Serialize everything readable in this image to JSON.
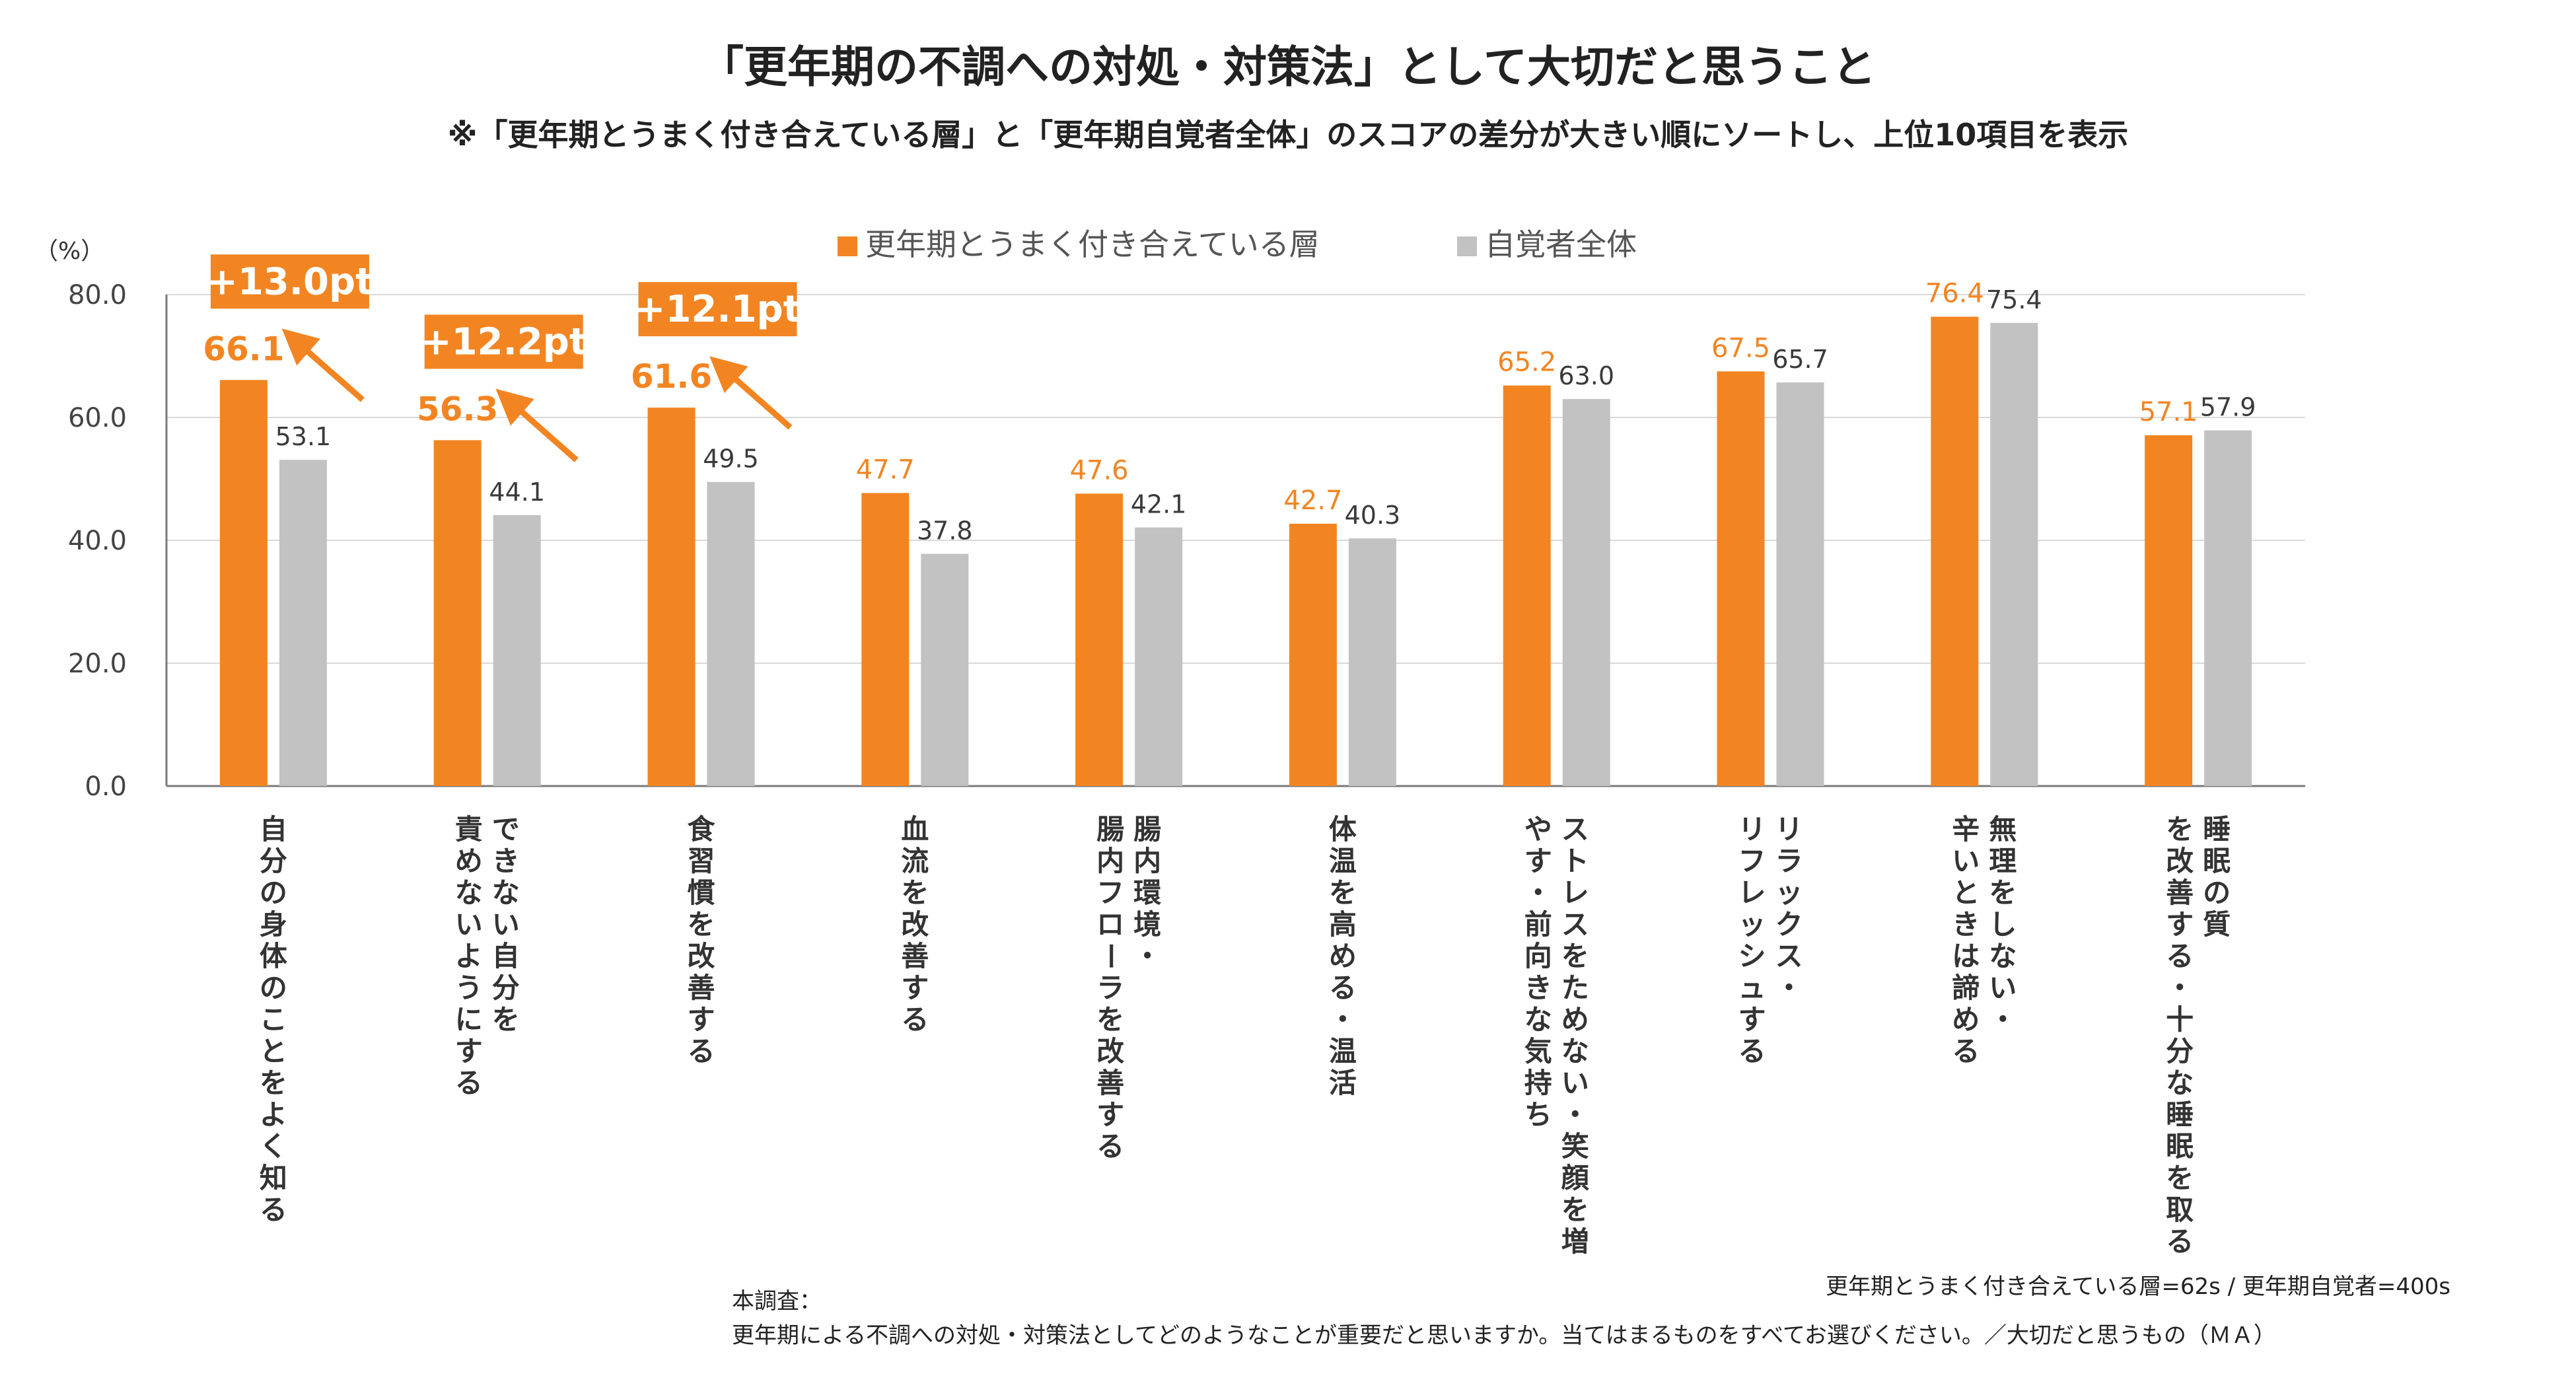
{
  "title": "「更年期の不調への対処・対策法」として大切だと思うこと",
  "subtitle": "※「更年期とうまく付き合えている層」と「更年期自覚者全体」のスコアの差分が大きい順にソートし、上位10項目を表示",
  "unit_label": "（%）",
  "colors": {
    "orange": "#f28522",
    "gray": "#c2c2c2",
    "orange_text": "#f28522",
    "gray_text": "#3a3a3a"
  },
  "chart_data": {
    "type": "bar",
    "ylim": [
      0,
      80
    ],
    "yticks": [
      "0.0",
      "20.0",
      "40.0",
      "60.0",
      "80.0"
    ],
    "grid": true,
    "legend_position": "top",
    "categories": [
      [
        "自分の身体のことをよく知る"
      ],
      [
        "できない自分を",
        "責めないようにする"
      ],
      [
        "食習慣を改善する"
      ],
      [
        "血流を改善する"
      ],
      [
        "腸内環境・",
        "腸内フローラを改善する"
      ],
      [
        "体温を高める・温活"
      ],
      [
        "ストレスをためない・笑顔を増",
        "やす・前向きな気持ち"
      ],
      [
        "リラックス・",
        "リフレッシュする"
      ],
      [
        "無理をしない・",
        "辛いときは諦める"
      ],
      [
        "睡眠の質",
        "を改善する・十分な睡眠を取る"
      ]
    ],
    "series": [
      {
        "name": "更年期とうまく付き合えている層",
        "values": [
          66.1,
          56.3,
          61.6,
          47.7,
          47.6,
          42.7,
          65.2,
          67.5,
          76.4,
          57.1
        ]
      },
      {
        "name": "自覚者全体",
        "values": [
          53.1,
          44.1,
          49.5,
          37.8,
          42.1,
          40.3,
          63.0,
          65.7,
          75.4,
          57.9
        ]
      }
    ],
    "value_labels": {
      "orange": [
        "66.1",
        "56.3",
        "61.6",
        "47.7",
        "47.6",
        "42.7",
        "65.2",
        "67.5",
        "76.4",
        "57.1"
      ],
      "gray": [
        "53.1",
        "44.1",
        "49.5",
        "37.8",
        "42.1",
        "40.3",
        "63.0",
        "65.7",
        "75.4",
        "57.9"
      ]
    },
    "annotations": [
      {
        "category_index": 0,
        "text": "+13.0pt"
      },
      {
        "category_index": 1,
        "text": "+12.2pt"
      },
      {
        "category_index": 2,
        "text": "+12.1pt"
      }
    ]
  },
  "notes": {
    "sample": "更年期とうまく付き合えている層=62s / 更年期自覚者=400s",
    "survey_label": "本調査：",
    "question": "更年期による不調への対処・対策法としてどのようなことが重要だと思いますか。当てはまるものをすべてお選びください。／大切だと思うもの（ＭＡ）"
  }
}
